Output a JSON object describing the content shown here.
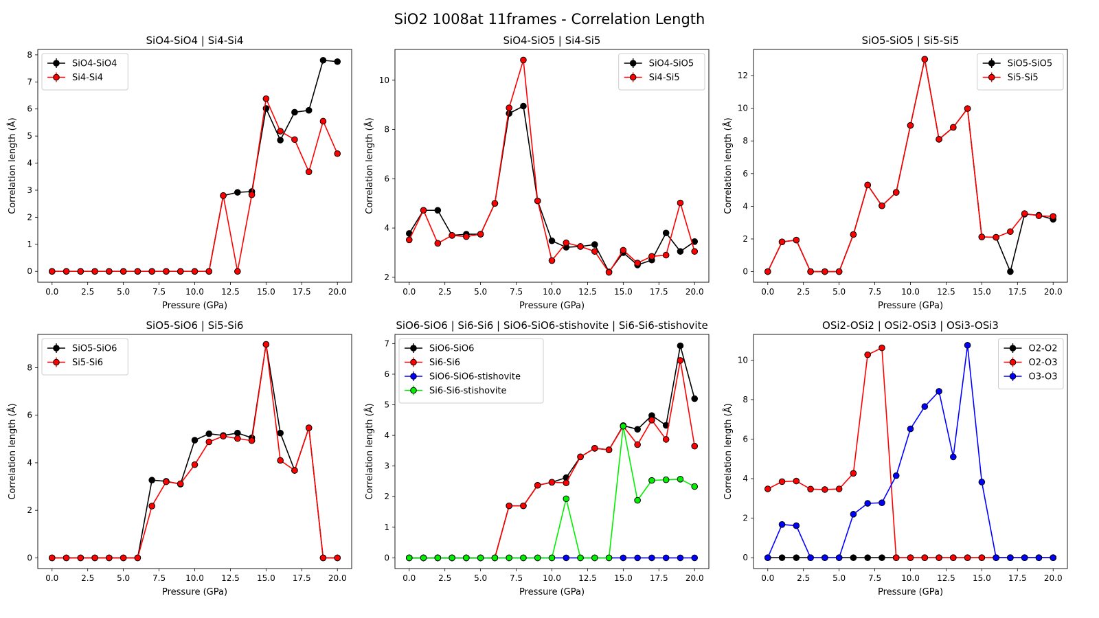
{
  "figure": {
    "title": "SiO2 1008at 11frames - Correlation Length"
  },
  "chart_data": [
    {
      "type": "line",
      "title": "SiO4-SiO4 | Si4-Si4",
      "xlabel": "Pressure (GPa)",
      "ylabel": "Correlation length (Å)",
      "xlim": [
        -1,
        21
      ],
      "ylim": [
        -0.4,
        8.2
      ],
      "xticks": [
        "0.0",
        "2.5",
        "5.0",
        "7.5",
        "10.0",
        "12.5",
        "15.0",
        "17.5",
        "20.0"
      ],
      "yticks": [
        "0",
        "1",
        "2",
        "3",
        "4",
        "5",
        "6",
        "7",
        "8"
      ],
      "legend": "top-left",
      "x": [
        0,
        1,
        2,
        3,
        4,
        5,
        6,
        7,
        8,
        9,
        10,
        11,
        12,
        13,
        14,
        15,
        16,
        17,
        18,
        19,
        20
      ],
      "series": [
        {
          "name": "SiO4-SiO4",
          "color": "#000000",
          "values": [
            0,
            0,
            0,
            0,
            0,
            0,
            0,
            0,
            0,
            0,
            0,
            0,
            2.8,
            2.92,
            2.95,
            6.02,
            4.85,
            5.88,
            5.95,
            7.8,
            7.75
          ]
        },
        {
          "name": "Si4-Si4",
          "color": "#ff0000",
          "values": [
            0,
            0,
            0,
            0,
            0,
            0,
            0,
            0,
            0,
            0,
            0,
            0,
            2.8,
            0,
            2.83,
            6.38,
            5.18,
            4.87,
            3.68,
            5.55,
            4.35
          ]
        }
      ]
    },
    {
      "type": "line",
      "title": "SiO4-SiO5 | Si4-Si5",
      "xlabel": "Pressure (GPa)",
      "ylabel": "Correlation length (Å)",
      "xlim": [
        -1,
        21
      ],
      "ylim": [
        1.8,
        11.25
      ],
      "xticks": [
        "0.0",
        "2.5",
        "5.0",
        "7.5",
        "10.0",
        "12.5",
        "15.0",
        "17.5",
        "20.0"
      ],
      "yticks": [
        "2",
        "4",
        "6",
        "8",
        "10"
      ],
      "legend": "top-right",
      "x": [
        0,
        1,
        2,
        3,
        4,
        5,
        6,
        7,
        8,
        9,
        10,
        11,
        12,
        13,
        14,
        15,
        16,
        17,
        18,
        19,
        20
      ],
      "series": [
        {
          "name": "SiO4-SiO5",
          "color": "#000000",
          "values": [
            3.78,
            4.72,
            4.72,
            3.7,
            3.75,
            3.75,
            5.0,
            8.65,
            8.95,
            5.1,
            3.48,
            3.22,
            3.25,
            3.33,
            2.22,
            3.0,
            2.5,
            2.7,
            3.8,
            3.05,
            3.45
          ]
        },
        {
          "name": "Si4-Si5",
          "color": "#ff0000",
          "values": [
            3.52,
            4.72,
            3.38,
            3.7,
            3.65,
            3.75,
            5.0,
            8.88,
            10.82,
            5.1,
            2.68,
            3.4,
            3.25,
            3.05,
            2.2,
            3.1,
            2.58,
            2.85,
            2.9,
            5.02,
            3.05
          ]
        }
      ]
    },
    {
      "type": "line",
      "title": "SiO5-SiO5 | Si5-Si5",
      "xlabel": "Pressure (GPa)",
      "ylabel": "Correlation length (Å)",
      "xlim": [
        -1,
        21
      ],
      "ylim": [
        -0.65,
        13.6
      ],
      "xticks": [
        "0.0",
        "2.5",
        "5.0",
        "7.5",
        "10.0",
        "12.5",
        "15.0",
        "17.5",
        "20.0"
      ],
      "yticks": [
        "0",
        "2",
        "4",
        "6",
        "8",
        "10",
        "12"
      ],
      "legend": "top-right",
      "x": [
        0,
        1,
        2,
        3,
        4,
        5,
        6,
        7,
        8,
        9,
        10,
        11,
        12,
        13,
        14,
        15,
        16,
        17,
        18,
        19,
        20
      ],
      "series": [
        {
          "name": "SiO5-SiO5",
          "color": "#000000",
          "values": [
            0,
            1.82,
            1.93,
            0,
            0,
            0,
            2.27,
            5.3,
            4.03,
            4.85,
            8.95,
            13.0,
            8.1,
            8.83,
            9.98,
            2.12,
            2.1,
            0,
            3.52,
            3.45,
            3.2
          ]
        },
        {
          "name": "Si5-Si5",
          "color": "#ff0000",
          "values": [
            0,
            1.82,
            1.93,
            0,
            0,
            0,
            2.27,
            5.3,
            4.03,
            4.85,
            8.95,
            13.0,
            8.1,
            8.83,
            9.98,
            2.12,
            2.1,
            2.45,
            3.55,
            3.42,
            3.38
          ]
        }
      ]
    },
    {
      "type": "line",
      "title": "SiO5-SiO6 | Si5-Si6",
      "xlabel": "Pressure (GPa)",
      "ylabel": "Correlation length (Å)",
      "xlim": [
        -1,
        21
      ],
      "ylim": [
        -0.45,
        9.4
      ],
      "xticks": [
        "0.0",
        "2.5",
        "5.0",
        "7.5",
        "10.0",
        "12.5",
        "15.0",
        "17.5",
        "20.0"
      ],
      "yticks": [
        "0",
        "2",
        "4",
        "6",
        "8"
      ],
      "legend": "top-left",
      "x": [
        0,
        1,
        2,
        3,
        4,
        5,
        6,
        7,
        8,
        9,
        10,
        11,
        12,
        13,
        14,
        15,
        16,
        17,
        18,
        19,
        20
      ],
      "series": [
        {
          "name": "SiO5-SiO6",
          "color": "#000000",
          "values": [
            0,
            0,
            0,
            0,
            0,
            0,
            0,
            3.27,
            3.22,
            3.1,
            4.95,
            5.22,
            5.15,
            5.25,
            5.05,
            8.98,
            5.25,
            3.68,
            5.47,
            0,
            0
          ]
        },
        {
          "name": "Si5-Si6",
          "color": "#ff0000",
          "values": [
            0,
            0,
            0,
            0,
            0,
            0,
            0,
            2.18,
            3.2,
            3.12,
            3.92,
            4.88,
            5.12,
            5.02,
            4.93,
            8.98,
            4.1,
            3.68,
            5.47,
            0,
            0
          ]
        }
      ]
    },
    {
      "type": "line",
      "title": "SiO6-SiO6 | Si6-Si6 | SiO6-SiO6-stishovite | Si6-Si6-stishovite",
      "xlabel": "Pressure (GPa)",
      "ylabel": "Correlation length (Å)",
      "xlim": [
        -1,
        21
      ],
      "ylim": [
        -0.35,
        7.3
      ],
      "xticks": [
        "0.0",
        "2.5",
        "5.0",
        "7.5",
        "10.0",
        "12.5",
        "15.0",
        "17.5",
        "20.0"
      ],
      "yticks": [
        "0",
        "1",
        "2",
        "3",
        "4",
        "5",
        "6",
        "7"
      ],
      "legend": "top-left",
      "x": [
        0,
        1,
        2,
        3,
        4,
        5,
        6,
        7,
        8,
        9,
        10,
        11,
        12,
        13,
        14,
        15,
        16,
        17,
        18,
        19,
        20
      ],
      "series": [
        {
          "name": "SiO6-SiO6",
          "color": "#000000",
          "values": [
            0,
            0,
            0,
            0,
            0,
            0,
            0,
            1.7,
            1.7,
            2.37,
            2.47,
            2.62,
            3.3,
            3.58,
            3.53,
            4.32,
            4.2,
            4.65,
            4.33,
            6.93,
            5.2
          ]
        },
        {
          "name": "Si6-Si6",
          "color": "#ff0000",
          "values": [
            0,
            0,
            0,
            0,
            0,
            0,
            0,
            1.7,
            1.7,
            2.37,
            2.47,
            2.45,
            3.3,
            3.58,
            3.53,
            4.3,
            3.7,
            4.5,
            3.87,
            6.45,
            3.65
          ]
        },
        {
          "name": "SiO6-SiO6-stishovite",
          "color": "#0000ff",
          "values": [
            0,
            0,
            0,
            0,
            0,
            0,
            0,
            0,
            0,
            0,
            0,
            0,
            0,
            0,
            0,
            0,
            0,
            0,
            0,
            0,
            0
          ]
        },
        {
          "name": "Si6-Si6-stishovite",
          "color": "#00ee00",
          "values": [
            0,
            0,
            0,
            0,
            0,
            0,
            0,
            0,
            0,
            0,
            0,
            1.93,
            0,
            0,
            0,
            4.3,
            1.88,
            2.53,
            2.55,
            2.57,
            2.33
          ]
        }
      ]
    },
    {
      "type": "line",
      "title": "OSi2-OSi2 | OSi2-OSi3 | OSi3-OSi3",
      "xlabel": "Pressure (GPa)",
      "ylabel": "Correlation length (Å)",
      "xlim": [
        -1,
        21
      ],
      "ylim": [
        -0.55,
        11.3
      ],
      "xticks": [
        "0.0",
        "2.5",
        "5.0",
        "7.5",
        "10.0",
        "12.5",
        "15.0",
        "17.5",
        "20.0"
      ],
      "yticks": [
        "0",
        "2",
        "4",
        "6",
        "8",
        "10"
      ],
      "legend": "top-right",
      "x": [
        0,
        1,
        2,
        3,
        4,
        5,
        6,
        7,
        8,
        9,
        10,
        11,
        12,
        13,
        14,
        15,
        16,
        17,
        18,
        19,
        20
      ],
      "series": [
        {
          "name": "O2-O2",
          "color": "#000000",
          "values": [
            0,
            0,
            0,
            0,
            0,
            0,
            0,
            0,
            0,
            0,
            0,
            0,
            0,
            0,
            0,
            0,
            0,
            0,
            0,
            0,
            0
          ]
        },
        {
          "name": "O2-O3",
          "color": "#ff0000",
          "values": [
            3.48,
            3.85,
            3.88,
            3.47,
            3.45,
            3.48,
            4.27,
            10.27,
            10.62,
            0,
            0,
            0,
            0,
            0,
            0,
            0,
            0,
            0,
            0,
            0,
            0
          ]
        },
        {
          "name": "O3-O3",
          "color": "#0000ff",
          "values": [
            0,
            1.68,
            1.62,
            0,
            0,
            0,
            2.2,
            2.75,
            2.78,
            4.15,
            6.52,
            7.65,
            8.42,
            5.1,
            10.75,
            3.83,
            0,
            0,
            0,
            0,
            0
          ]
        }
      ]
    }
  ]
}
